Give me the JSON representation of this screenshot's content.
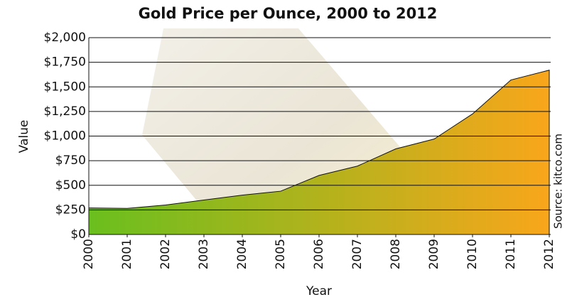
{
  "chart_data": {
    "type": "area",
    "title": "Gold Price per Ounce, 2000 to 2012",
    "x_label": "Year",
    "y_label": "Value",
    "annotation": "Source: kitco.com",
    "x": [
      2000,
      2001,
      2002,
      2003,
      2004,
      2005,
      2006,
      2007,
      2008,
      2009,
      2010,
      2011,
      2012
    ],
    "values": [
      270,
      265,
      300,
      350,
      400,
      440,
      600,
      695,
      870,
      970,
      1225,
      1570,
      1670
    ],
    "gradient": [
      "#6abf1e",
      "#f9a61b"
    ],
    "xlim": [
      2000,
      2012
    ],
    "xticks": [
      2000,
      2001,
      2002,
      2003,
      2004,
      2005,
      2006,
      2007,
      2008,
      2009,
      2010,
      2011,
      2012
    ],
    "ylim": [
      0,
      2000
    ],
    "yticks": [
      {
        "value": 0,
        "label": "$0"
      },
      {
        "value": 250,
        "label": "$250"
      },
      {
        "value": 500,
        "label": "$500"
      },
      {
        "value": 750,
        "label": "$750"
      },
      {
        "value": 1000,
        "label": "$1,000"
      },
      {
        "value": 1250,
        "label": "$1,250"
      },
      {
        "value": 1500,
        "label": "$1,500"
      },
      {
        "value": 1750,
        "label": "$1,750"
      },
      {
        "value": 2000,
        "label": "$2,000"
      }
    ],
    "grid": true
  }
}
